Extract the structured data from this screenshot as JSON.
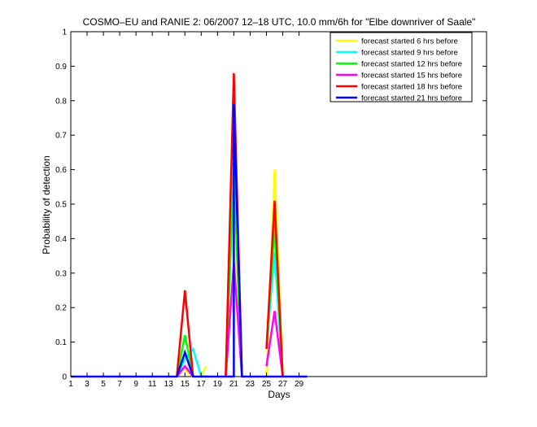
{
  "chart_data": {
    "type": "line",
    "title": "COSMO–EU and RANIE 2: 06/2007 12–18 UTC, 10.0 mm/6h for \"Elbe downriver of Saale\"",
    "xlabel": "Days",
    "ylabel": "Probability of detection",
    "xlim": [
      1,
      52
    ],
    "ylim": [
      0,
      1
    ],
    "x_ticks": [
      1,
      3,
      5,
      7,
      9,
      11,
      13,
      15,
      17,
      19,
      21,
      23,
      25,
      27,
      29
    ],
    "y_ticks": [
      0,
      0.1,
      0.2,
      0.3,
      0.4,
      0.5,
      0.6,
      0.7,
      0.8,
      0.9,
      1
    ],
    "y_tick_labels": [
      "0",
      "0.1",
      "0.2",
      "0.3",
      "0.4",
      "0.5",
      "0.6",
      "0.7",
      "0.8",
      "0.9",
      "1"
    ],
    "grid": false,
    "legend_position": "top-right",
    "series": [
      {
        "name": "forecast started 6 hrs before",
        "color": "#ffff00",
        "points": [
          [
            15,
            0.02
          ],
          [
            16,
            0
          ],
          [
            17,
            0
          ],
          [
            17.6,
            0.03
          ],
          [
            null,
            null
          ],
          [
            21,
            0.45
          ],
          [
            22,
            0
          ],
          [
            null,
            null
          ],
          [
            25,
            0
          ],
          [
            26,
            0.6
          ],
          [
            27,
            0
          ]
        ]
      },
      {
        "name": "forecast started 9 hrs before",
        "color": "#00ffff",
        "points": [
          [
            14,
            0
          ],
          [
            15,
            0.05
          ],
          [
            16,
            0.08
          ],
          [
            17,
            0
          ],
          [
            17.8,
            0
          ],
          [
            null,
            null
          ],
          [
            20,
            0
          ],
          [
            21,
            0.73
          ],
          [
            22,
            0
          ],
          [
            null,
            null
          ],
          [
            25,
            0.08
          ],
          [
            26,
            0.36
          ],
          [
            27,
            0
          ]
        ]
      },
      {
        "name": "forecast started 12 hrs before",
        "color": "#00ff00",
        "points": [
          [
            14,
            0
          ],
          [
            15,
            0.12
          ],
          [
            16,
            0
          ],
          [
            null,
            null
          ],
          [
            20,
            0
          ],
          [
            21,
            0.59
          ],
          [
            22,
            0
          ],
          [
            null,
            null
          ],
          [
            25,
            0.08
          ],
          [
            26,
            0.44
          ],
          [
            27,
            0
          ]
        ]
      },
      {
        "name": "forecast started 15 hrs before",
        "color": "#ff00ff",
        "points": [
          [
            14,
            0
          ],
          [
            15,
            0.03
          ],
          [
            16,
            0
          ],
          [
            null,
            null
          ],
          [
            20,
            0
          ],
          [
            21,
            0.33
          ],
          [
            22,
            0
          ],
          [
            null,
            null
          ],
          [
            25,
            0.03
          ],
          [
            26,
            0.19
          ],
          [
            27,
            0
          ]
        ]
      },
      {
        "name": "forecast started 18 hrs before",
        "color": "#ff0000",
        "points": [
          [
            14,
            0
          ],
          [
            15,
            0.25
          ],
          [
            16,
            0
          ],
          [
            null,
            null
          ],
          [
            20,
            0
          ],
          [
            21,
            0.88
          ],
          [
            22,
            0
          ],
          [
            null,
            null
          ],
          [
            25,
            0.08
          ],
          [
            26,
            0.51
          ],
          [
            27,
            0
          ]
        ]
      },
      {
        "name": "forecast started 21 hrs before",
        "color": "#0000ff",
        "points": [
          [
            1,
            0
          ],
          [
            14,
            0
          ],
          [
            15,
            0.07
          ],
          [
            16,
            0
          ],
          [
            21,
            0
          ],
          [
            21,
            0.79
          ],
          [
            22,
            0
          ],
          [
            30,
            0
          ]
        ]
      }
    ]
  }
}
